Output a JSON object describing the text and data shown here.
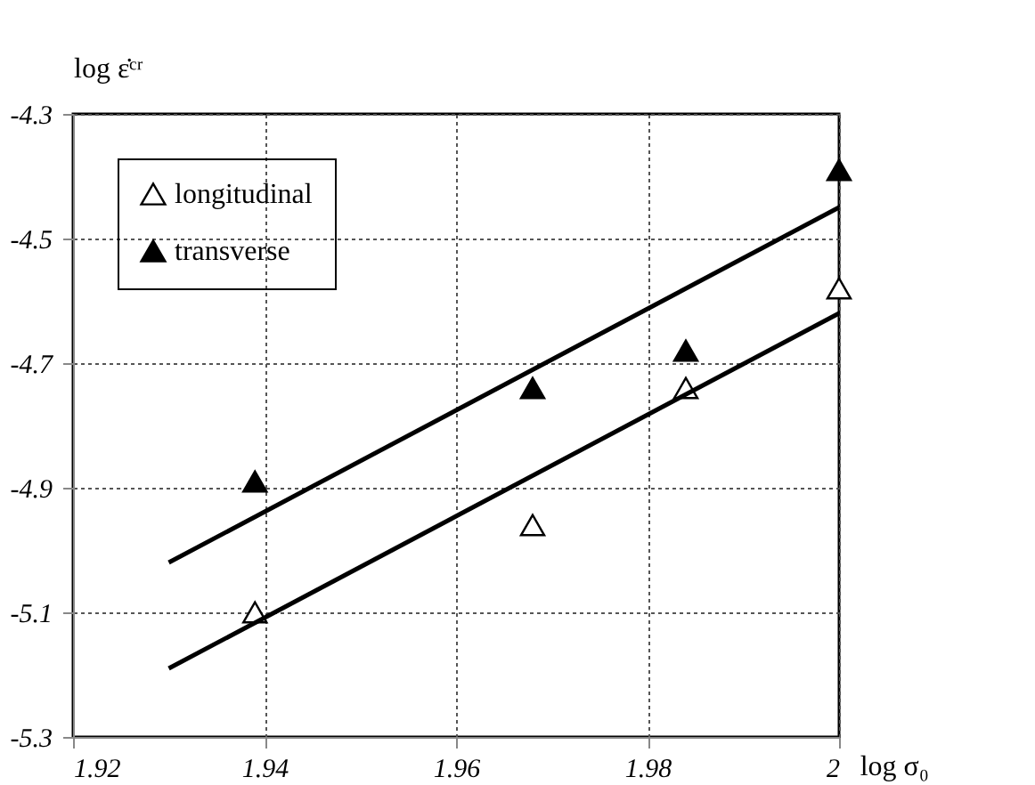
{
  "chart_data": {
    "type": "scatter",
    "xlabel": "log σ₀",
    "ylabel": "log ε̇ᶜʳ",
    "xlim": [
      1.92,
      2.0
    ],
    "xticks": [
      1.92,
      1.94,
      1.96,
      1.98,
      {
        "value": 2.0,
        "label": "2"
      }
    ],
    "ylim": [
      -5.3,
      -4.3
    ],
    "yticks": [
      -5.3,
      -5.1,
      -4.9,
      -4.7,
      -4.5,
      -4.3
    ],
    "grid": true,
    "legend": "top left",
    "series": [
      {
        "name": "longitudinal",
        "color": "#ffffff",
        "marker": "triangle",
        "x": [
          1.939,
          1.968,
          1.984,
          2.0
        ],
        "values": [
          -5.1,
          -4.96,
          -4.74,
          -4.58
        ]
      },
      {
        "name": "transverse",
        "color": "#000000",
        "marker": "triangle",
        "x": [
          1.939,
          1.968,
          1.984,
          2.0
        ],
        "values": [
          -4.89,
          -4.74,
          -4.68,
          -4.39
        ]
      },
      {
        "type": "line",
        "color": "#000000",
        "marker": "none",
        "line_style": "solid",
        "x": [
          1.93,
          2.0
        ],
        "values": [
          -5.02,
          -4.45
        ]
      },
      {
        "type": "line",
        "color": "#000000",
        "marker": "none",
        "line_style": "solid",
        "x": [
          1.93,
          2.0
        ],
        "values": [
          -5.19,
          -4.62
        ]
      }
    ]
  }
}
